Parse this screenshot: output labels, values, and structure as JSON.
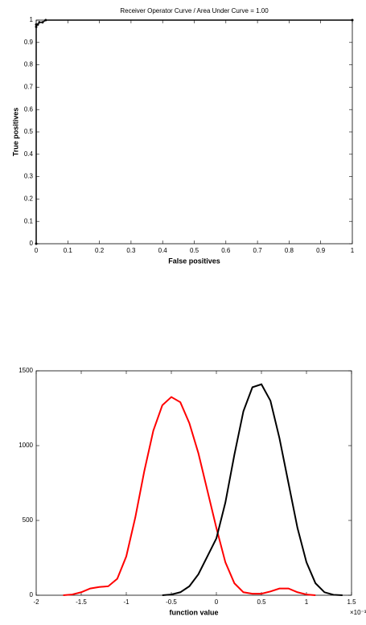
{
  "chart_data": [
    {
      "type": "line",
      "title": "Receiver Operator Curve / Area Under Curve = 1.00",
      "x_label": "False positives",
      "y_label": "True positives",
      "xlim": [
        0,
        1
      ],
      "xticks": [
        0,
        0.1,
        0.2,
        0.3,
        0.4,
        0.5,
        0.6,
        0.7,
        0.8,
        0.9,
        1
      ],
      "ylim": [
        0,
        1
      ],
      "yticks": [
        0,
        0.1,
        0.2,
        0.3,
        0.4,
        0.5,
        0.6,
        0.7,
        0.8,
        0.9,
        1
      ],
      "markers": true,
      "series": [
        {
          "color": "#000000",
          "x": [
            0,
            0,
            0,
            0.005,
            0.01,
            0.02,
            0.03,
            1
          ],
          "values": [
            0,
            0.97,
            0.98,
            0.98,
            0.99,
            0.99,
            1,
            1
          ]
        }
      ]
    },
    {
      "type": "line",
      "x_label": "function value",
      "x_exponent": "×10⁻³",
      "xlim": [
        -2,
        1.5
      ],
      "xticks": [
        -2,
        -1.5,
        -1,
        -0.5,
        0,
        0.5,
        1,
        1.5
      ],
      "ylim": [
        0,
        1500
      ],
      "yticks": [
        0,
        500,
        1000,
        1500
      ],
      "markers": false,
      "series": [
        {
          "color": "#ff0000",
          "x": [
            -1.7,
            -1.6,
            -1.5,
            -1.4,
            -1.3,
            -1.2,
            -1.1,
            -1.0,
            -0.9,
            -0.8,
            -0.7,
            -0.6,
            -0.5,
            -0.4,
            -0.3,
            -0.2,
            -0.1,
            0,
            0.1,
            0.2,
            0.3,
            0.4,
            0.5,
            0.6,
            0.7,
            0.8,
            0.9,
            1.0,
            1.1
          ],
          "values": [
            0,
            5,
            20,
            45,
            55,
            60,
            110,
            260,
            520,
            830,
            1100,
            1270,
            1325,
            1290,
            1150,
            950,
            700,
            450,
            220,
            80,
            20,
            10,
            10,
            25,
            45,
            45,
            20,
            5,
            0
          ]
        },
        {
          "color": "#000000",
          "x": [
            -0.6,
            -0.5,
            -0.4,
            -0.3,
            -0.2,
            -0.1,
            0,
            0.1,
            0.2,
            0.3,
            0.4,
            0.5,
            0.6,
            0.7,
            0.8,
            0.9,
            1.0,
            1.1,
            1.2,
            1.3,
            1.4
          ],
          "values": [
            0,
            5,
            20,
            60,
            140,
            260,
            380,
            620,
            940,
            1230,
            1390,
            1410,
            1300,
            1050,
            750,
            450,
            220,
            80,
            20,
            3,
            0
          ]
        }
      ]
    }
  ]
}
